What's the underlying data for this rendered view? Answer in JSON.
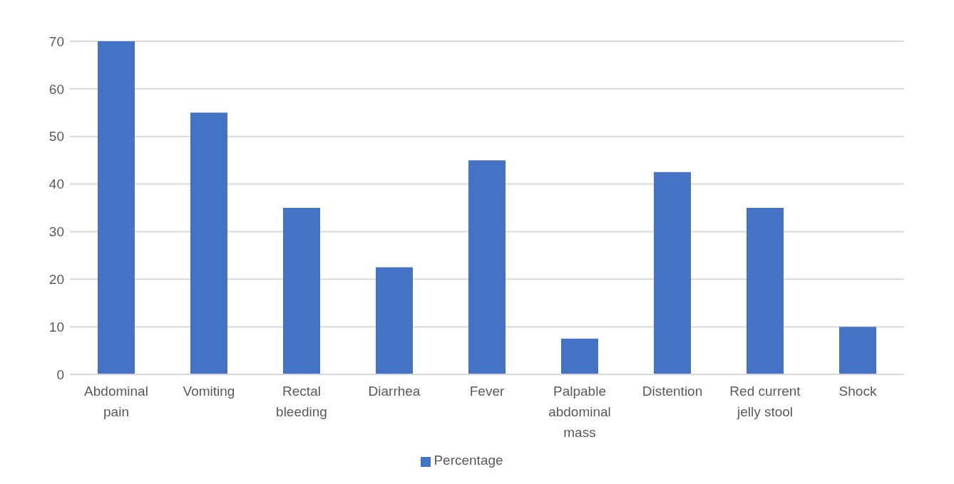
{
  "chart_data": {
    "type": "bar",
    "categories": [
      "Abdominal pain",
      "Vomiting",
      "Rectal bleeding",
      "Diarrhea",
      "Fever",
      "Palpable abdominal mass",
      "Distention",
      "Red current jelly stool",
      "Shock"
    ],
    "series": [
      {
        "name": "Percentage",
        "color": "#4472c4",
        "values": [
          70,
          55,
          35,
          22.5,
          45,
          7.5,
          42.5,
          35,
          10
        ]
      }
    ],
    "ylim": [
      0,
      70
    ],
    "yticks": [
      0,
      10,
      20,
      30,
      40,
      50,
      60,
      70
    ],
    "grid": "y",
    "legend": "bottom"
  }
}
